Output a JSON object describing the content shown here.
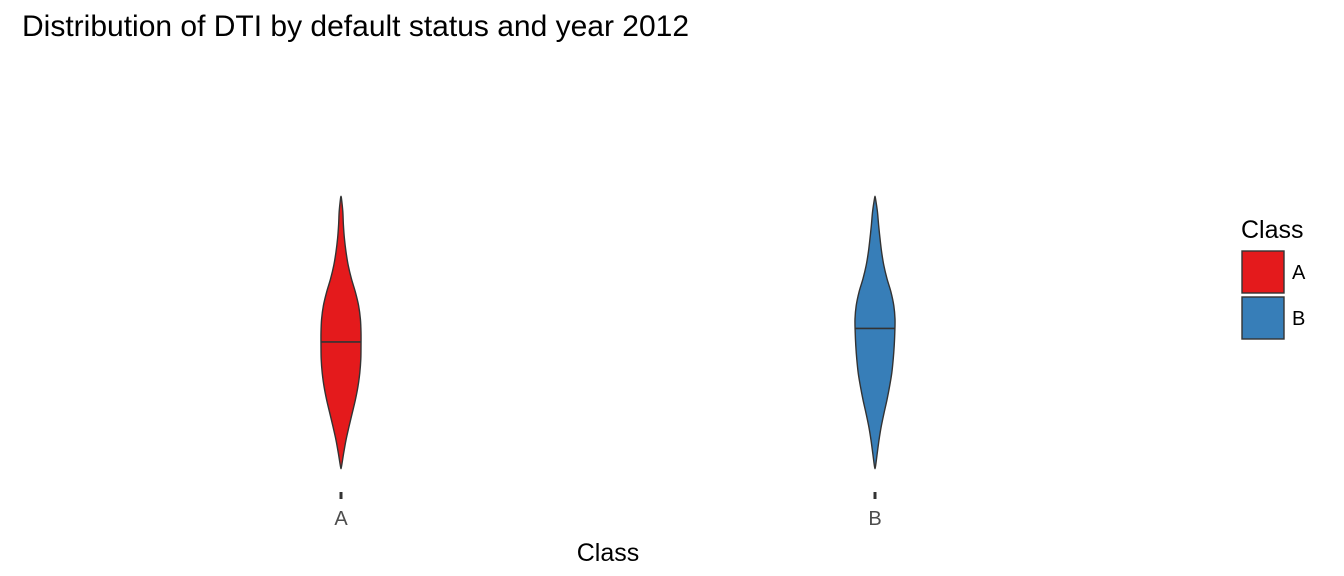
{
  "chart_data": {
    "type": "violin",
    "title": "Distribution of DTI by default status and year 2012",
    "xlabel": "Class",
    "ylabel": "",
    "categories": [
      "A",
      "B"
    ],
    "series": [
      {
        "name": "A",
        "color": "#E41A1C",
        "outline": "#333333",
        "range": [
          0.0,
          1.0
        ],
        "median": 0.465,
        "density": [
          [
            0.0,
            0.02
          ],
          [
            0.05,
            0.13
          ],
          [
            0.1,
            0.25
          ],
          [
            0.15,
            0.4
          ],
          [
            0.2,
            0.56
          ],
          [
            0.25,
            0.72
          ],
          [
            0.3,
            0.85
          ],
          [
            0.35,
            0.94
          ],
          [
            0.4,
            0.99
          ],
          [
            0.45,
            1.0
          ],
          [
            0.5,
            1.0
          ],
          [
            0.55,
            0.97
          ],
          [
            0.6,
            0.88
          ],
          [
            0.65,
            0.72
          ],
          [
            0.7,
            0.52
          ],
          [
            0.75,
            0.36
          ],
          [
            0.8,
            0.25
          ],
          [
            0.85,
            0.17
          ],
          [
            0.9,
            0.12
          ],
          [
            0.95,
            0.09
          ],
          [
            1.0,
            0.02
          ]
        ]
      },
      {
        "name": "B",
        "color": "#377EB8",
        "outline": "#333333",
        "range": [
          0.0,
          1.0
        ],
        "median": 0.515,
        "density": [
          [
            0.0,
            0.02
          ],
          [
            0.05,
            0.11
          ],
          [
            0.1,
            0.2
          ],
          [
            0.15,
            0.31
          ],
          [
            0.2,
            0.45
          ],
          [
            0.25,
            0.6
          ],
          [
            0.3,
            0.73
          ],
          [
            0.35,
            0.84
          ],
          [
            0.4,
            0.91
          ],
          [
            0.45,
            0.96
          ],
          [
            0.5,
            0.99
          ],
          [
            0.55,
            1.0
          ],
          [
            0.6,
            0.94
          ],
          [
            0.65,
            0.8
          ],
          [
            0.7,
            0.6
          ],
          [
            0.75,
            0.44
          ],
          [
            0.8,
            0.33
          ],
          [
            0.85,
            0.25
          ],
          [
            0.9,
            0.18
          ],
          [
            0.95,
            0.12
          ],
          [
            1.0,
            0.02
          ]
        ]
      }
    ],
    "grid": false,
    "legend": {
      "title": "Class",
      "position": "right",
      "entries": [
        {
          "label": "A",
          "color": "#E41A1C"
        },
        {
          "label": "B",
          "color": "#377EB8"
        }
      ]
    }
  }
}
